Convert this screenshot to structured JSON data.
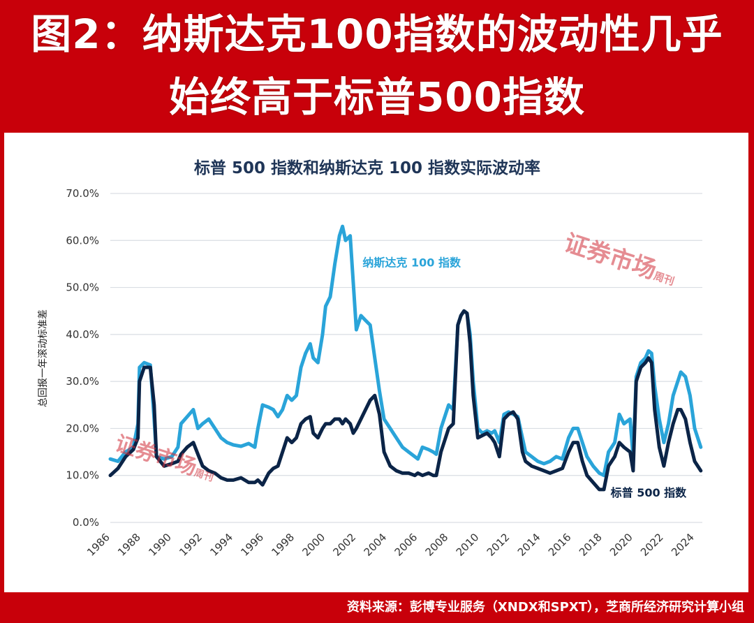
{
  "header": {
    "line1": "图2：纳斯达克100指数的波动性几乎",
    "line2": "始终高于标普500指数"
  },
  "footer": {
    "source": "资料来源：彭博专业服务（XNDX和SPXT），芝商所经济研究计算小组"
  },
  "watermarks": {
    "text": "证券市场",
    "small": "周刊"
  },
  "colors": {
    "frame": "#c8000a",
    "nasdaq": "#2aa4d9",
    "sp500": "#0b2447",
    "grid": "#d9dde3",
    "title": "#1f3557"
  },
  "chart_data": {
    "type": "line",
    "title": "标普 500 指数和纳斯达克 100 指数实际波动率",
    "ylabel": "总回报一年滚动标准差",
    "xlabel": "",
    "xlim": [
      1986,
      2024.5
    ],
    "ylim": [
      0,
      70
    ],
    "yticks": [
      "0.0%",
      "10.0%",
      "20.0%",
      "30.0%",
      "40.0%",
      "50.0%",
      "60.0%",
      "70.0%"
    ],
    "xticks": [
      "1986",
      "1988",
      "1990",
      "1992",
      "1994",
      "1996",
      "1998",
      "2000",
      "2002",
      "2004",
      "2006",
      "2008",
      "2010",
      "2012",
      "2014",
      "2016",
      "2018",
      "2020",
      "2022",
      "2024"
    ],
    "grid": true,
    "series": [
      {
        "name": "纳斯达克 100 指数",
        "color": "#2aa4d9",
        "points": [
          [
            1986.0,
            13.5
          ],
          [
            1986.5,
            13
          ],
          [
            1987.0,
            15
          ],
          [
            1987.5,
            16
          ],
          [
            1987.8,
            21
          ],
          [
            1987.9,
            33
          ],
          [
            1988.2,
            34
          ],
          [
            1988.6,
            33.5
          ],
          [
            1988.85,
            22
          ],
          [
            1989.0,
            14
          ],
          [
            1989.5,
            13.5
          ],
          [
            1990.0,
            14
          ],
          [
            1990.4,
            16
          ],
          [
            1990.6,
            21
          ],
          [
            1991.0,
            22.5
          ],
          [
            1991.4,
            24
          ],
          [
            1991.7,
            20
          ],
          [
            1992.0,
            21
          ],
          [
            1992.4,
            22
          ],
          [
            1992.8,
            20
          ],
          [
            1993.2,
            18
          ],
          [
            1993.6,
            17
          ],
          [
            1994.0,
            16.5
          ],
          [
            1994.5,
            16.2
          ],
          [
            1995.0,
            16.8
          ],
          [
            1995.4,
            16
          ],
          [
            1995.6,
            20
          ],
          [
            1995.9,
            25
          ],
          [
            1996.3,
            24.5
          ],
          [
            1996.6,
            24
          ],
          [
            1996.9,
            22.5
          ],
          [
            1997.2,
            24
          ],
          [
            1997.5,
            27
          ],
          [
            1997.8,
            26
          ],
          [
            1998.1,
            27
          ],
          [
            1998.4,
            33
          ],
          [
            1998.7,
            36
          ],
          [
            1999.0,
            38
          ],
          [
            1999.2,
            35
          ],
          [
            1999.5,
            34
          ],
          [
            1999.8,
            40
          ],
          [
            2000.0,
            46
          ],
          [
            2000.3,
            48
          ],
          [
            2000.6,
            55
          ],
          [
            2000.9,
            61
          ],
          [
            2001.1,
            63
          ],
          [
            2001.3,
            60
          ],
          [
            2001.6,
            61
          ],
          [
            2001.8,
            51
          ],
          [
            2002.0,
            41
          ],
          [
            2002.3,
            44
          ],
          [
            2002.6,
            43
          ],
          [
            2002.9,
            42
          ],
          [
            2003.2,
            35
          ],
          [
            2003.5,
            28
          ],
          [
            2003.8,
            22
          ],
          [
            2004.2,
            20
          ],
          [
            2004.6,
            18
          ],
          [
            2005.0,
            16
          ],
          [
            2005.4,
            15
          ],
          [
            2005.8,
            14
          ],
          [
            2006.0,
            13.5
          ],
          [
            2006.3,
            16
          ],
          [
            2006.7,
            15.5
          ],
          [
            2007.0,
            15
          ],
          [
            2007.2,
            14.5
          ],
          [
            2007.5,
            20
          ],
          [
            2007.8,
            23
          ],
          [
            2008.0,
            25
          ],
          [
            2008.3,
            24
          ],
          [
            2008.6,
            42
          ],
          [
            2008.8,
            44
          ],
          [
            2009.0,
            45
          ],
          [
            2009.2,
            44.5
          ],
          [
            2009.4,
            40
          ],
          [
            2009.6,
            30
          ],
          [
            2009.9,
            20
          ],
          [
            2010.2,
            19
          ],
          [
            2010.5,
            19.5
          ],
          [
            2010.8,
            19
          ],
          [
            2011.0,
            19.5
          ],
          [
            2011.3,
            17
          ],
          [
            2011.6,
            23
          ],
          [
            2011.9,
            23.5
          ],
          [
            2012.2,
            23
          ],
          [
            2012.5,
            22.5
          ],
          [
            2012.8,
            18
          ],
          [
            2013.0,
            15
          ],
          [
            2013.4,
            14
          ],
          [
            2013.8,
            13
          ],
          [
            2014.2,
            12.5
          ],
          [
            2014.6,
            13
          ],
          [
            2015.0,
            14
          ],
          [
            2015.4,
            13.5
          ],
          [
            2015.8,
            18
          ],
          [
            2016.1,
            20
          ],
          [
            2016.4,
            20
          ],
          [
            2016.7,
            17
          ],
          [
            2017.0,
            14
          ],
          [
            2017.4,
            12
          ],
          [
            2017.8,
            10.5
          ],
          [
            2018.1,
            10
          ],
          [
            2018.4,
            15
          ],
          [
            2018.8,
            17
          ],
          [
            2019.1,
            23
          ],
          [
            2019.4,
            21
          ],
          [
            2019.8,
            22
          ],
          [
            2020.0,
            14
          ],
          [
            2020.2,
            31
          ],
          [
            2020.5,
            34
          ],
          [
            2020.8,
            35
          ],
          [
            2021.0,
            36.5
          ],
          [
            2021.2,
            36
          ],
          [
            2021.4,
            29
          ],
          [
            2021.7,
            22
          ],
          [
            2022.0,
            17
          ],
          [
            2022.3,
            21
          ],
          [
            2022.6,
            27
          ],
          [
            2022.9,
            30
          ],
          [
            2023.1,
            32
          ],
          [
            2023.4,
            31
          ],
          [
            2023.7,
            27
          ],
          [
            2024.0,
            20
          ],
          [
            2024.4,
            16
          ]
        ]
      },
      {
        "name": "标普 500 指数",
        "color": "#0b2447",
        "points": [
          [
            1986.0,
            10
          ],
          [
            1986.5,
            11.5
          ],
          [
            1987.0,
            14
          ],
          [
            1987.5,
            15.5
          ],
          [
            1987.8,
            18
          ],
          [
            1987.9,
            30
          ],
          [
            1988.2,
            33
          ],
          [
            1988.6,
            33
          ],
          [
            1988.85,
            25
          ],
          [
            1989.0,
            14
          ],
          [
            1989.5,
            12
          ],
          [
            1990.0,
            12.5
          ],
          [
            1990.4,
            13
          ],
          [
            1990.6,
            14.5
          ],
          [
            1991.0,
            16
          ],
          [
            1991.4,
            17
          ],
          [
            1991.7,
            14.5
          ],
          [
            1992.0,
            12
          ],
          [
            1992.4,
            11
          ],
          [
            1992.8,
            10.5
          ],
          [
            1993.2,
            9.5
          ],
          [
            1993.6,
            9
          ],
          [
            1994.0,
            9
          ],
          [
            1994.5,
            9.5
          ],
          [
            1995.0,
            8.5
          ],
          [
            1995.4,
            8.5
          ],
          [
            1995.6,
            9
          ],
          [
            1995.9,
            8
          ],
          [
            1996.3,
            10.5
          ],
          [
            1996.6,
            11.5
          ],
          [
            1996.9,
            12
          ],
          [
            1997.2,
            15
          ],
          [
            1997.5,
            18
          ],
          [
            1997.8,
            17
          ],
          [
            1998.1,
            18
          ],
          [
            1998.4,
            21
          ],
          [
            1998.7,
            22
          ],
          [
            1999.0,
            22.5
          ],
          [
            1999.2,
            19
          ],
          [
            1999.5,
            18
          ],
          [
            1999.8,
            20
          ],
          [
            2000.0,
            21
          ],
          [
            2000.3,
            21
          ],
          [
            2000.6,
            22
          ],
          [
            2000.9,
            22
          ],
          [
            2001.1,
            21
          ],
          [
            2001.3,
            22
          ],
          [
            2001.6,
            21
          ],
          [
            2001.8,
            19
          ],
          [
            2002.0,
            20
          ],
          [
            2002.3,
            22
          ],
          [
            2002.6,
            24
          ],
          [
            2002.9,
            26
          ],
          [
            2003.2,
            27
          ],
          [
            2003.5,
            23
          ],
          [
            2003.8,
            15
          ],
          [
            2004.2,
            12
          ],
          [
            2004.6,
            11
          ],
          [
            2005.0,
            10.5
          ],
          [
            2005.4,
            10.5
          ],
          [
            2005.8,
            10
          ],
          [
            2006.0,
            10.5
          ],
          [
            2006.3,
            10
          ],
          [
            2006.7,
            10.5
          ],
          [
            2007.0,
            10
          ],
          [
            2007.2,
            10
          ],
          [
            2007.5,
            15
          ],
          [
            2007.8,
            18
          ],
          [
            2008.0,
            20
          ],
          [
            2008.3,
            21
          ],
          [
            2008.6,
            42
          ],
          [
            2008.8,
            44
          ],
          [
            2009.0,
            45
          ],
          [
            2009.2,
            44.5
          ],
          [
            2009.4,
            38
          ],
          [
            2009.6,
            27
          ],
          [
            2009.9,
            18
          ],
          [
            2010.2,
            18.5
          ],
          [
            2010.5,
            19
          ],
          [
            2010.8,
            18
          ],
          [
            2011.0,
            17
          ],
          [
            2011.3,
            14
          ],
          [
            2011.6,
            22
          ],
          [
            2011.9,
            23
          ],
          [
            2012.2,
            23.5
          ],
          [
            2012.5,
            22
          ],
          [
            2012.8,
            15
          ],
          [
            2013.0,
            13
          ],
          [
            2013.4,
            12
          ],
          [
            2013.8,
            11.5
          ],
          [
            2014.2,
            11
          ],
          [
            2014.6,
            10.5
          ],
          [
            2015.0,
            11
          ],
          [
            2015.4,
            11.5
          ],
          [
            2015.8,
            15
          ],
          [
            2016.1,
            17
          ],
          [
            2016.4,
            17
          ],
          [
            2016.7,
            13
          ],
          [
            2017.0,
            10
          ],
          [
            2017.4,
            8.5
          ],
          [
            2017.8,
            7
          ],
          [
            2018.1,
            7
          ],
          [
            2018.4,
            12
          ],
          [
            2018.8,
            14
          ],
          [
            2019.1,
            17
          ],
          [
            2019.4,
            16
          ],
          [
            2019.8,
            15
          ],
          [
            2020.0,
            11
          ],
          [
            2020.2,
            30
          ],
          [
            2020.5,
            33
          ],
          [
            2020.8,
            34
          ],
          [
            2021.0,
            35
          ],
          [
            2021.2,
            34
          ],
          [
            2021.4,
            24
          ],
          [
            2021.7,
            16
          ],
          [
            2022.0,
            12
          ],
          [
            2022.3,
            17
          ],
          [
            2022.6,
            21
          ],
          [
            2022.9,
            24
          ],
          [
            2023.1,
            24
          ],
          [
            2023.4,
            22
          ],
          [
            2023.7,
            17
          ],
          [
            2024.0,
            13
          ],
          [
            2024.4,
            11
          ]
        ]
      }
    ],
    "annotations": [
      {
        "text": "纳斯达克 100 指数",
        "x": 2005.6,
        "y": 54.5,
        "series": 0
      },
      {
        "text": "标普 500 指数",
        "x": 2021.0,
        "y": 5.5,
        "series": 1
      }
    ]
  }
}
